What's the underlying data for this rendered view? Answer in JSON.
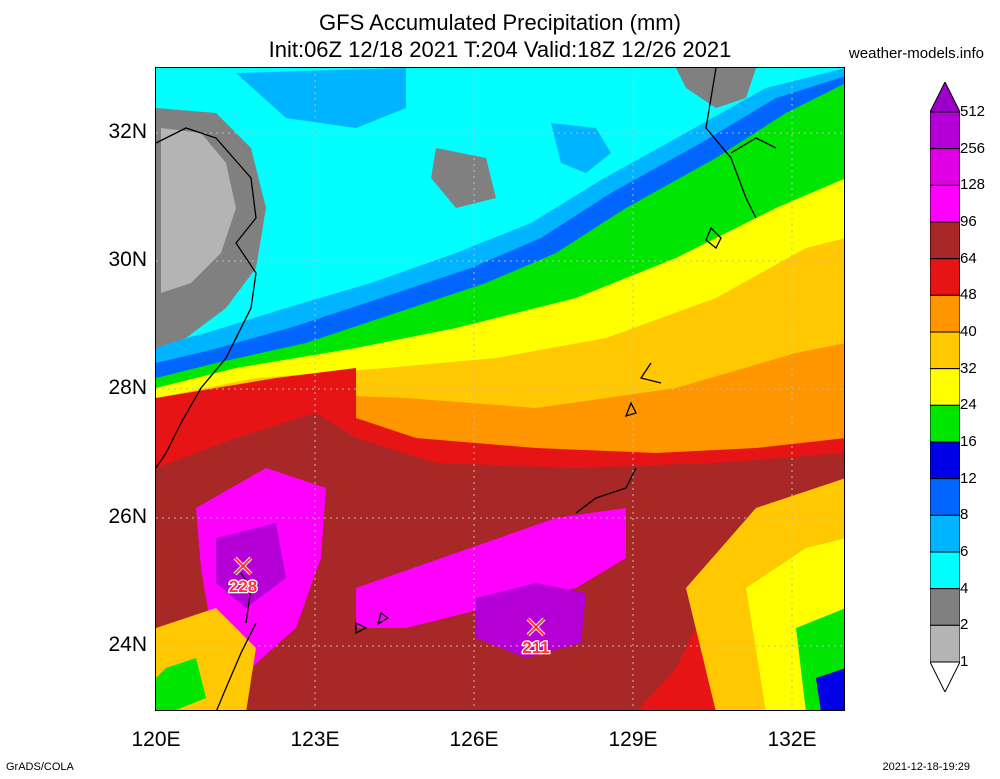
{
  "header": {
    "title_line1": "GFS Accumulated Precipitation (mm)",
    "title_line2": "Init:06Z 12/18 2021 T:204 Valid:18Z 12/26 2021",
    "site": "weather-models.info"
  },
  "axes": {
    "lat_labels": [
      "32N",
      "30N",
      "28N",
      "26N",
      "24N"
    ],
    "lon_labels": [
      "120E",
      "123E",
      "126E",
      "129E",
      "132E"
    ]
  },
  "maxima": [
    {
      "value": "228",
      "color": "#ff3333"
    },
    {
      "value": "211",
      "color": "#ff3333"
    }
  ],
  "legend": {
    "levels": [
      "512",
      "256",
      "128",
      "96",
      "64",
      "48",
      "40",
      "32",
      "24",
      "16",
      "12",
      "8",
      "6",
      "4",
      "2",
      "1"
    ],
    "colors": [
      "#9b00c8",
      "#b400d6",
      "#e100e6",
      "#ff00ff",
      "#a82828",
      "#e61414",
      "#ff9600",
      "#ffc800",
      "#ffff00",
      "#00e600",
      "#0000e6",
      "#0066ff",
      "#00b4ff",
      "#00ffff",
      "#808080",
      "#b4b4b4",
      "#ffffff"
    ]
  },
  "footer": {
    "credit": "GrADS/COLA",
    "timestamp": "2021-12-18-19:29"
  }
}
